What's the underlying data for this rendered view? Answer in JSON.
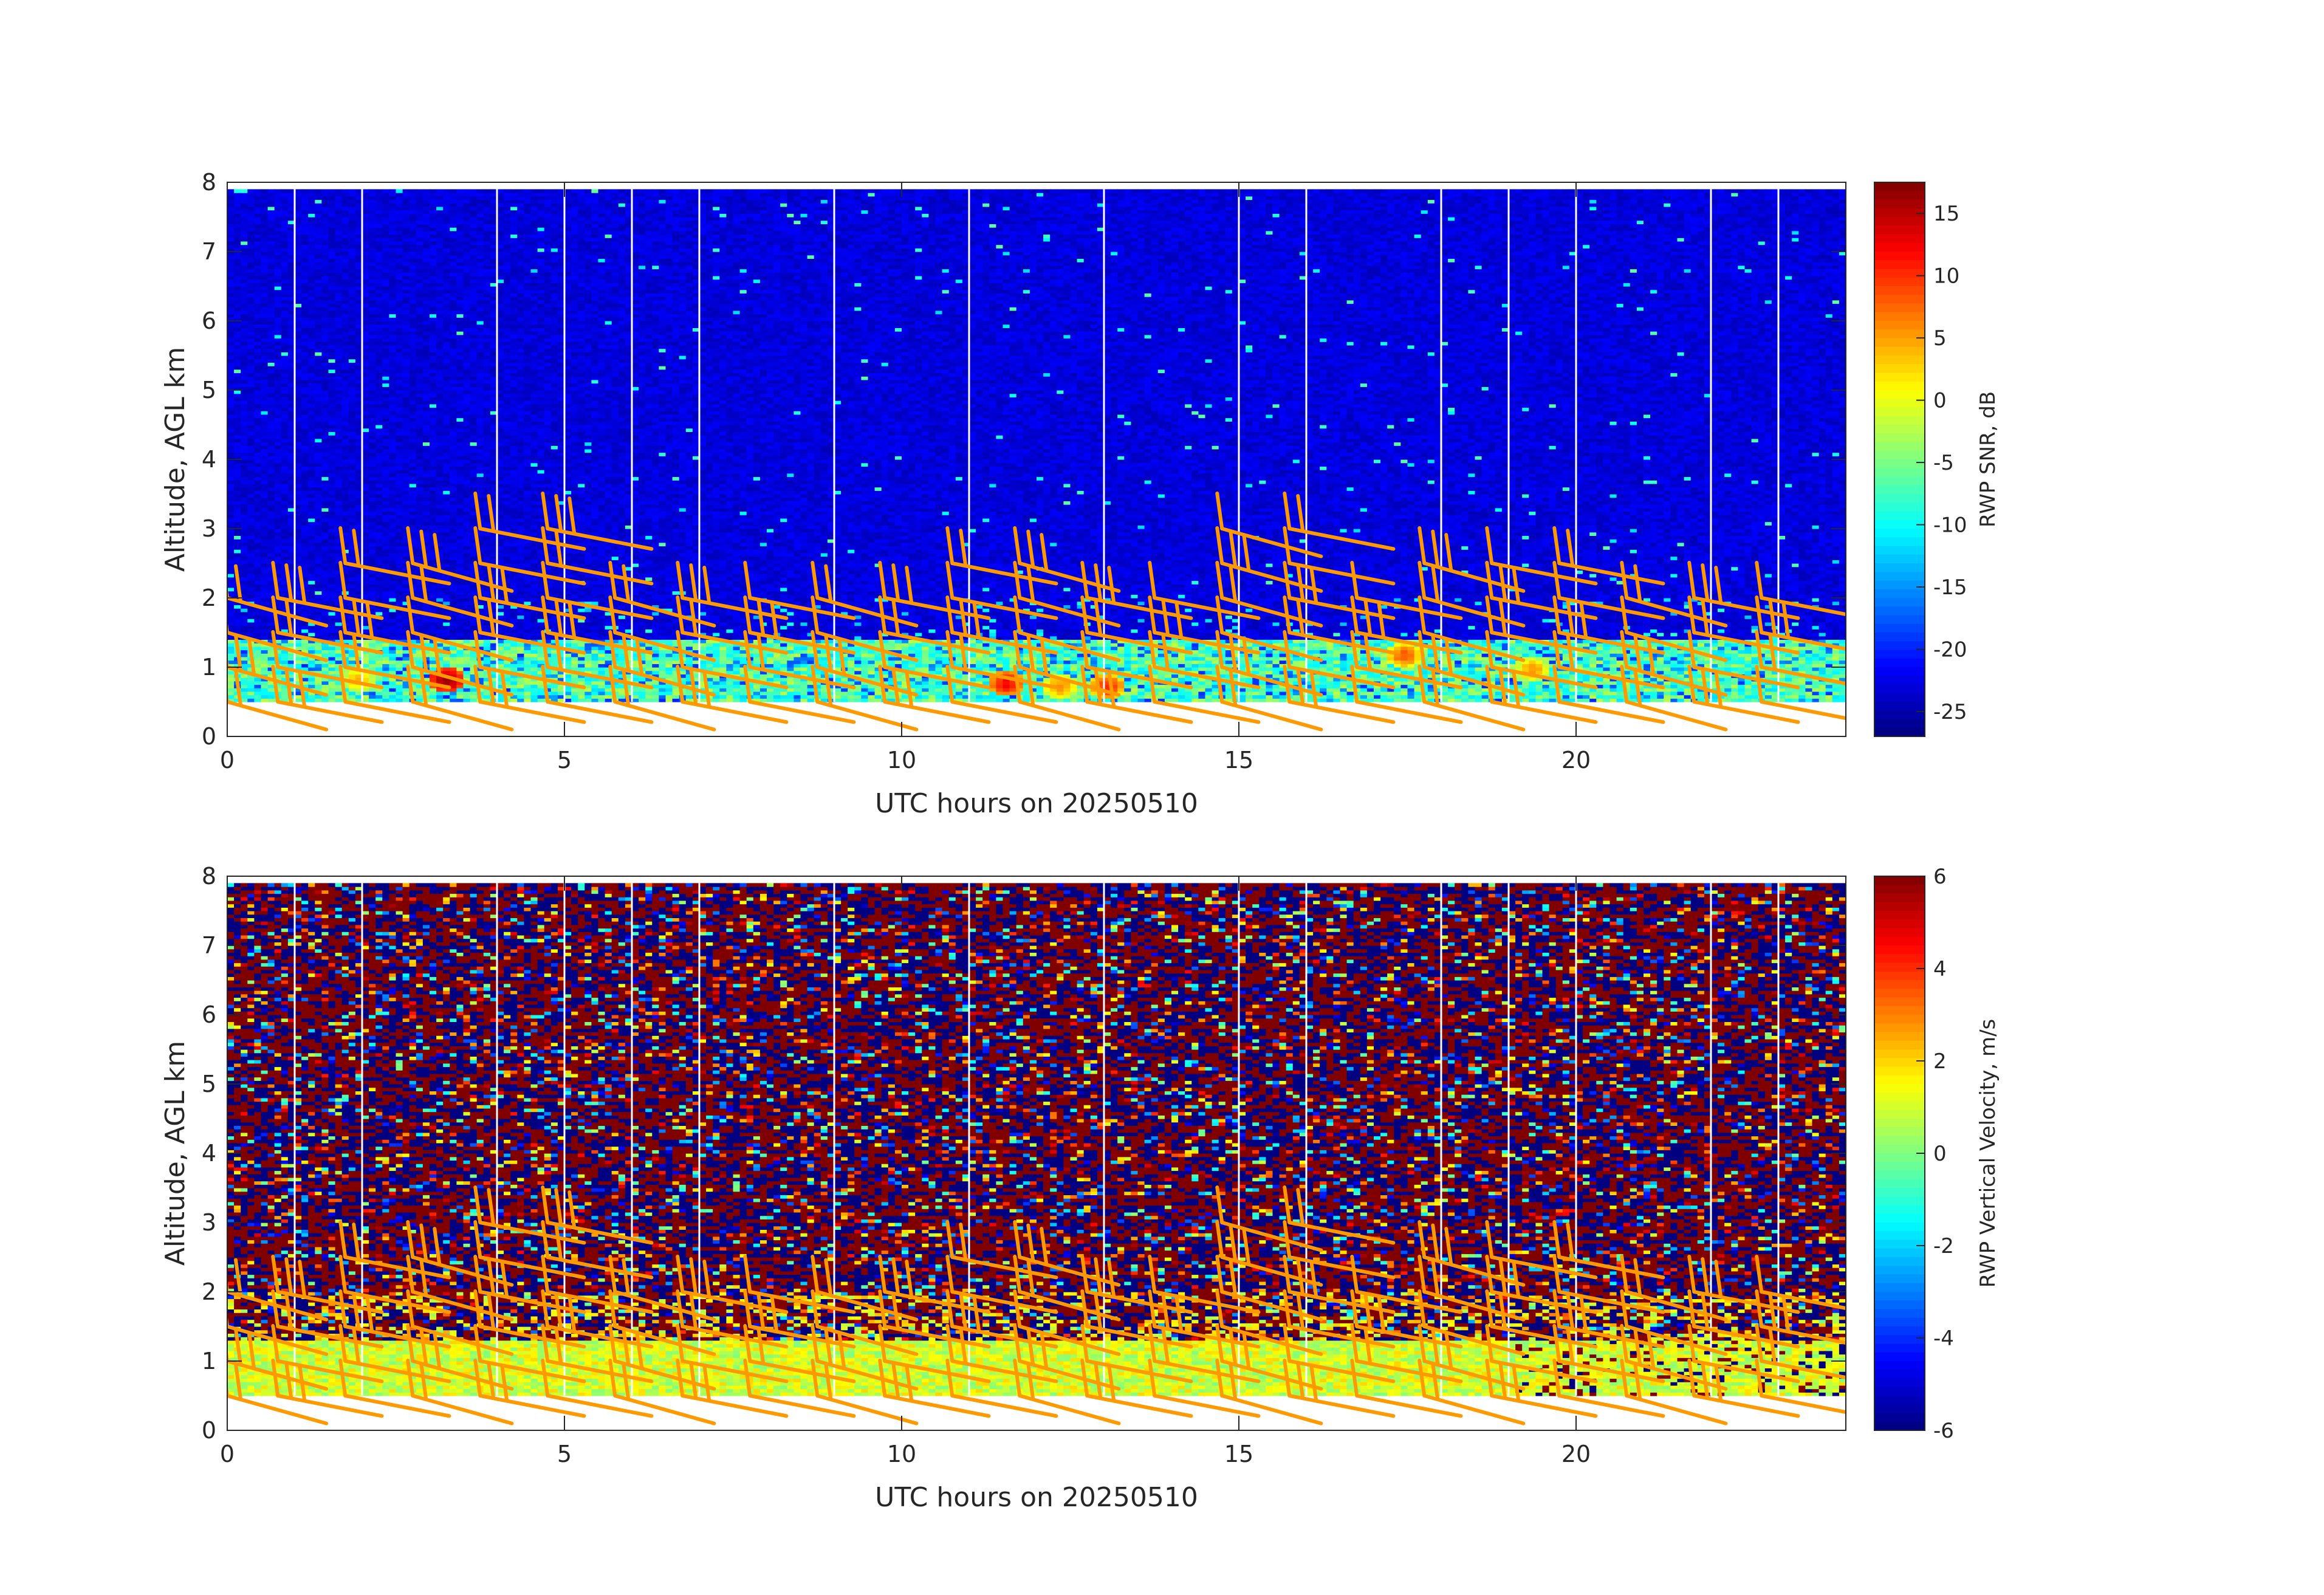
{
  "chart_data": [
    {
      "type": "heatmap",
      "title": "",
      "xlabel": "UTC hours on 20250510",
      "ylabel": "Altitude, AGL km",
      "xlim": [
        0,
        24
      ],
      "ylim": [
        0,
        8
      ],
      "xticks": [
        0,
        5,
        10,
        15,
        20
      ],
      "yticks": [
        0,
        1,
        2,
        3,
        4,
        5,
        6,
        7,
        8
      ],
      "data_altitude_range_km": [
        0.5,
        7.9
      ],
      "data_time_range_h": [
        0,
        24
      ],
      "colorbar": {
        "label": "RWP SNR, dB",
        "range": [
          -27,
          17.5
        ],
        "ticks": [
          15,
          10,
          5,
          0,
          -5,
          -10,
          -15,
          -20,
          -25
        ],
        "colormap": "jet"
      },
      "gap_times_h": [
        1,
        2,
        4,
        5,
        6,
        7,
        9,
        11,
        13,
        15,
        16,
        18,
        19,
        20,
        22,
        23
      ],
      "background_level": -23,
      "boundary_layer_top_km": 1.4,
      "high_snr_features": [
        {
          "t": 3.2,
          "z": 0.8,
          "value": 16
        },
        {
          "t": 11.5,
          "z": 0.75,
          "value": 12
        },
        {
          "t": 13.0,
          "z": 0.7,
          "value": 10
        },
        {
          "t": 12.3,
          "z": 0.7,
          "value": 6
        },
        {
          "t": 17.4,
          "z": 1.15,
          "value": 8
        },
        {
          "t": 19.3,
          "z": 0.95,
          "value": 5
        },
        {
          "t": 1.9,
          "z": 0.8,
          "value": 4
        }
      ],
      "wind_barb_color": "#ff9900"
    },
    {
      "type": "heatmap",
      "title": "",
      "xlabel": "UTC hours on 20250510",
      "ylabel": "Altitude, AGL km",
      "xlim": [
        0,
        24
      ],
      "ylim": [
        0,
        8
      ],
      "xticks": [
        0,
        5,
        10,
        15,
        20
      ],
      "yticks": [
        0,
        1,
        2,
        3,
        4,
        5,
        6,
        7,
        8
      ],
      "data_altitude_range_km": [
        0.5,
        7.9
      ],
      "data_time_range_h": [
        0,
        24
      ],
      "colorbar": {
        "label": "RWP Vertical Velocity, m/s",
        "range": [
          -6,
          6
        ],
        "ticks": [
          6,
          4,
          2,
          0,
          -2,
          -4,
          -6
        ],
        "colormap": "jet"
      },
      "gap_times_h": [
        1,
        2,
        4,
        5,
        6,
        7,
        9,
        11,
        13,
        15,
        16,
        18,
        19,
        20,
        22,
        23
      ],
      "boundary_layer_top_km": 1.3,
      "boundary_layer_value": 1,
      "wind_barb_color": "#ff9900"
    }
  ],
  "wind_barbs": {
    "times_h": [
      0,
      0.75,
      1.75,
      2.75,
      3.75,
      4.75,
      5.75,
      6.75,
      7.75,
      8.75,
      9.75,
      10.75,
      11.75,
      12.75,
      13.75,
      14.75,
      15.75,
      16.75,
      17.75,
      18.75,
      19.75,
      20.75,
      21.75,
      22.75
    ],
    "top_km": [
      2.0,
      2.4,
      2.6,
      2.6,
      3.0,
      3.0,
      2.0,
      2.0,
      2.0,
      2.2,
      2.2,
      2.8,
      2.8,
      2.2,
      2.2,
      3.2,
      3.2,
      2.2,
      2.6,
      2.6,
      2.6,
      2.0,
      2.0,
      2.2
    ]
  }
}
